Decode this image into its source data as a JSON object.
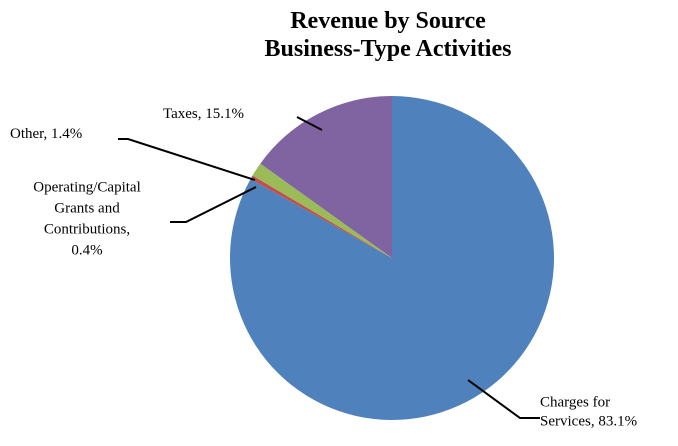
{
  "chart_data": {
    "type": "pie",
    "title": [
      "Revenue by Source",
      "Business-Type Activities"
    ],
    "categories": [
      "Charges for Services",
      "Operating/Capital Grants and Contributions",
      "Other",
      "Taxes"
    ],
    "values": [
      83.1,
      0.4,
      1.4,
      15.1
    ],
    "unit": "%",
    "colors": [
      "#4F81BD",
      "#C0504D",
      "#9BBB59",
      "#8064A2"
    ],
    "labels": [
      [
        "Charges for",
        "Services, 83.1%"
      ],
      [
        "Operating/Capital",
        "Grants and",
        "Contributions,",
        "0.4%"
      ],
      [
        "Other, 1.4%"
      ],
      [
        "Taxes, 15.1%"
      ]
    ],
    "start_angle": "12 o'clock",
    "direction": "clockwise",
    "legend": "none"
  }
}
